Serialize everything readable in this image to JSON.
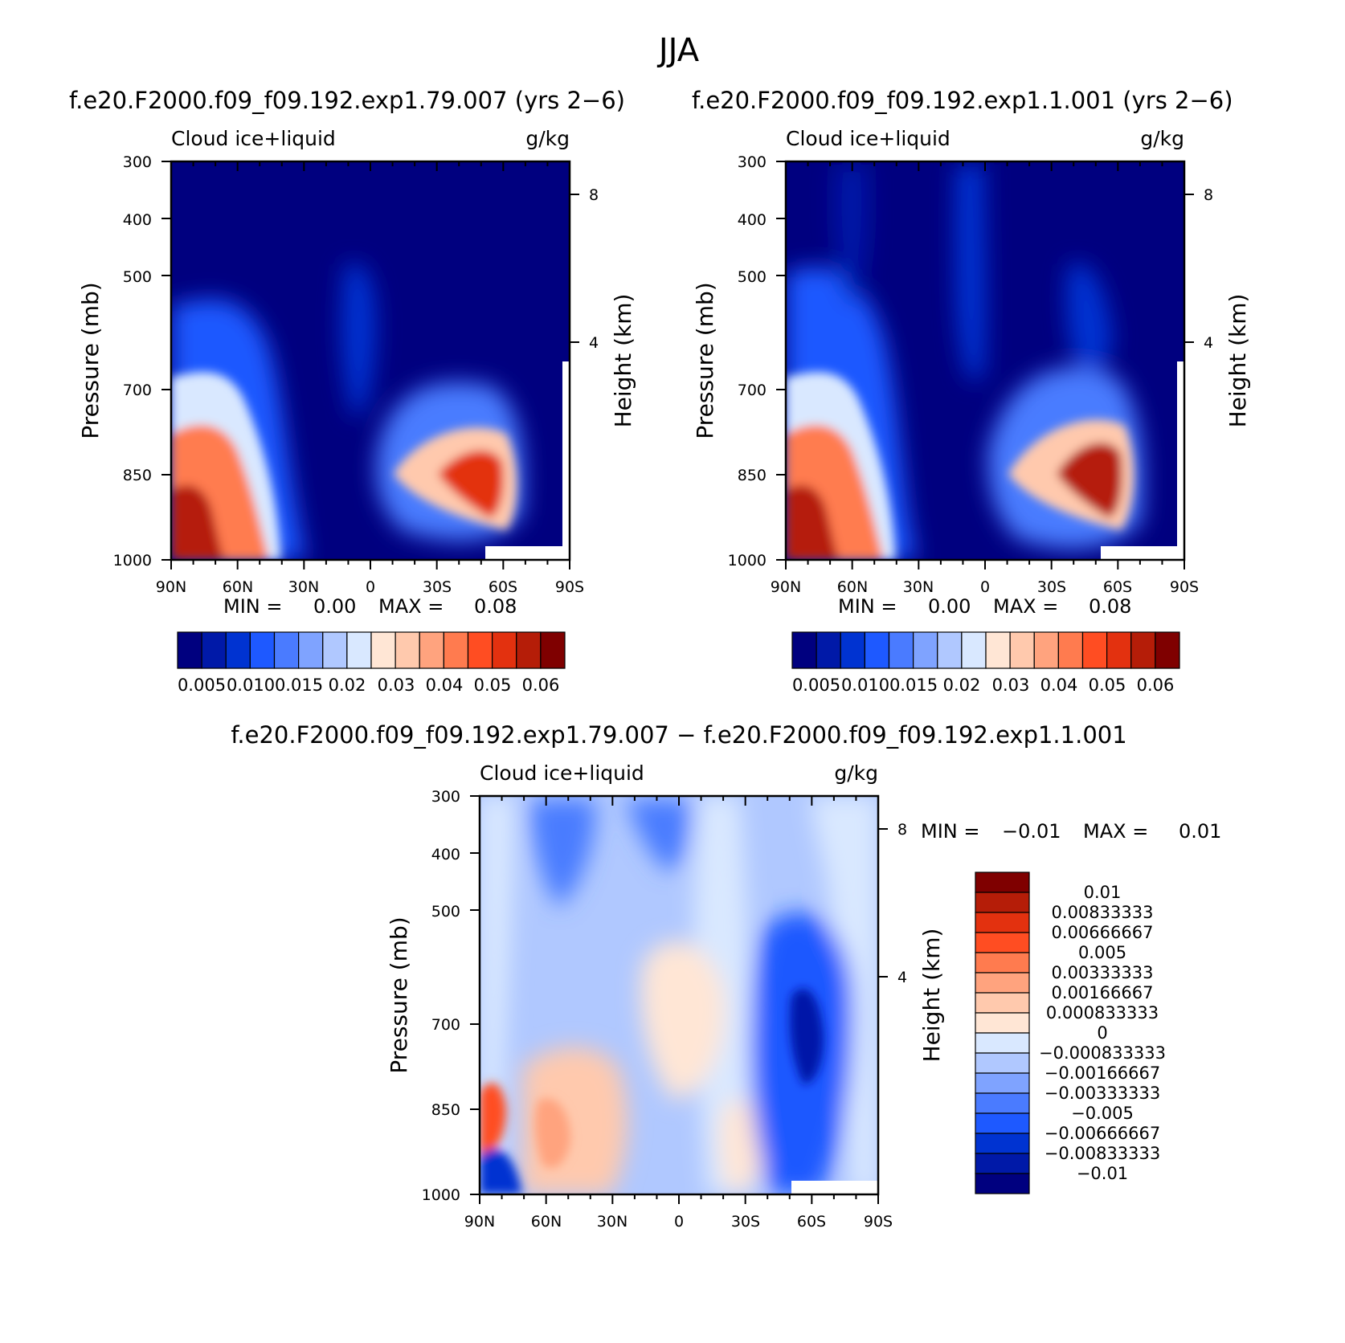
{
  "figure": {
    "title": "JJA"
  },
  "colors": {
    "seq": [
      "#00007F",
      "#0019A8",
      "#0033D1",
      "#1E59FF",
      "#4A7BFF",
      "#7FA3FF",
      "#B0C8FF",
      "#D9E8FF",
      "#FFE6D5",
      "#FFC9AD",
      "#FFA37E",
      "#FF7B4F",
      "#FF4D22",
      "#E3310F",
      "#B51D08",
      "#7F0000"
    ],
    "div": [
      "#7F0000",
      "#B51D08",
      "#E3310F",
      "#FF4D22",
      "#FF7B4F",
      "#FFA37E",
      "#FFC9AD",
      "#FFE6D5",
      "#D9E8FF",
      "#B0C8FF",
      "#7FA3FF",
      "#4A7BFF",
      "#1E59FF",
      "#0033D1",
      "#0019A8",
      "#00007F"
    ]
  },
  "chart_data": [
    {
      "type": "heatmap",
      "title": "f.e20.F2000.f09_f09.192.exp1.79.007 (yrs 2−6)",
      "left_label": "Cloud ice+liquid",
      "right_label": "g/kg",
      "ylabel": "Pressure (mb)",
      "ylabel_right": "Height (km)",
      "x_ticks": [
        "90N",
        "60N",
        "30N",
        "0",
        "30S",
        "60S",
        "90S"
      ],
      "y_ticks": [
        "300",
        "400",
        "500",
        "700",
        "850",
        "1000"
      ],
      "y_right_ticks": [
        "8",
        "4"
      ],
      "min_label": "MIN =",
      "min_value": "0.00",
      "max_label": "MAX =",
      "max_value": "0.08",
      "colorbar_labels": [
        "0.005",
        "0.010",
        "0.015",
        "0.02",
        "0.03",
        "0.04",
        "0.05",
        "0.06"
      ]
    },
    {
      "type": "heatmap",
      "title": "f.e20.F2000.f09_f09.192.exp1.1.001 (yrs 2−6)",
      "left_label": "Cloud ice+liquid",
      "right_label": "g/kg",
      "ylabel": "Pressure (mb)",
      "ylabel_right": "Height (km)",
      "x_ticks": [
        "90N",
        "60N",
        "30N",
        "0",
        "30S",
        "60S",
        "90S"
      ],
      "y_ticks": [
        "300",
        "400",
        "500",
        "700",
        "850",
        "1000"
      ],
      "y_right_ticks": [
        "8",
        "4"
      ],
      "min_label": "MIN =",
      "min_value": "0.00",
      "max_label": "MAX =",
      "max_value": "0.08",
      "colorbar_labels": [
        "0.005",
        "0.010",
        "0.015",
        "0.02",
        "0.03",
        "0.04",
        "0.05",
        "0.06"
      ]
    },
    {
      "type": "heatmap",
      "title": "f.e20.F2000.f09_f09.192.exp1.79.007 − f.e20.F2000.f09_f09.192.exp1.1.001",
      "left_label": "Cloud ice+liquid",
      "right_label": "g/kg",
      "ylabel": "Pressure (mb)",
      "ylabel_right": "Height (km)",
      "x_ticks": [
        "90N",
        "60N",
        "30N",
        "0",
        "30S",
        "60S",
        "90S"
      ],
      "y_ticks": [
        "300",
        "400",
        "500",
        "700",
        "850",
        "1000"
      ],
      "y_right_ticks": [
        "8",
        "4"
      ],
      "min_label": "MIN =",
      "min_value": "−0.01",
      "max_label": "MAX =",
      "max_value": "0.01",
      "colorbar_labels": [
        "0.01",
        "0.00833333",
        "0.00666667",
        "0.005",
        "0.00333333",
        "0.00166667",
        "0.000833333",
        "0",
        "−0.000833333",
        "−0.00166667",
        "−0.00333333",
        "−0.005",
        "−0.00666667",
        "−0.00833333",
        "−0.01"
      ]
    }
  ]
}
